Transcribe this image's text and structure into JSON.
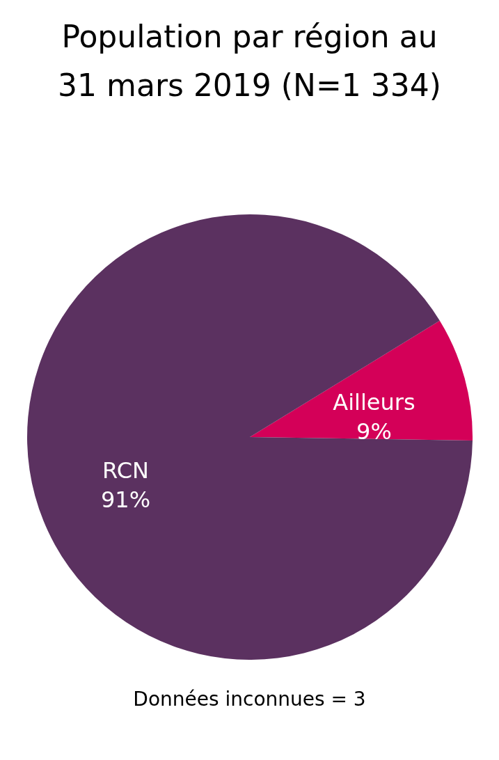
{
  "chart_data": {
    "type": "pie",
    "title": "Population par région au 31 mars 2019 (N=1 334)",
    "categories": [
      "Ailleurs",
      "RCN"
    ],
    "values": [
      9,
      91
    ],
    "value_labels": [
      "9%",
      "91%"
    ],
    "colors": [
      "#d40058",
      "#5b3160"
    ],
    "annotations": [
      "Données inconnues = 3"
    ]
  }
}
